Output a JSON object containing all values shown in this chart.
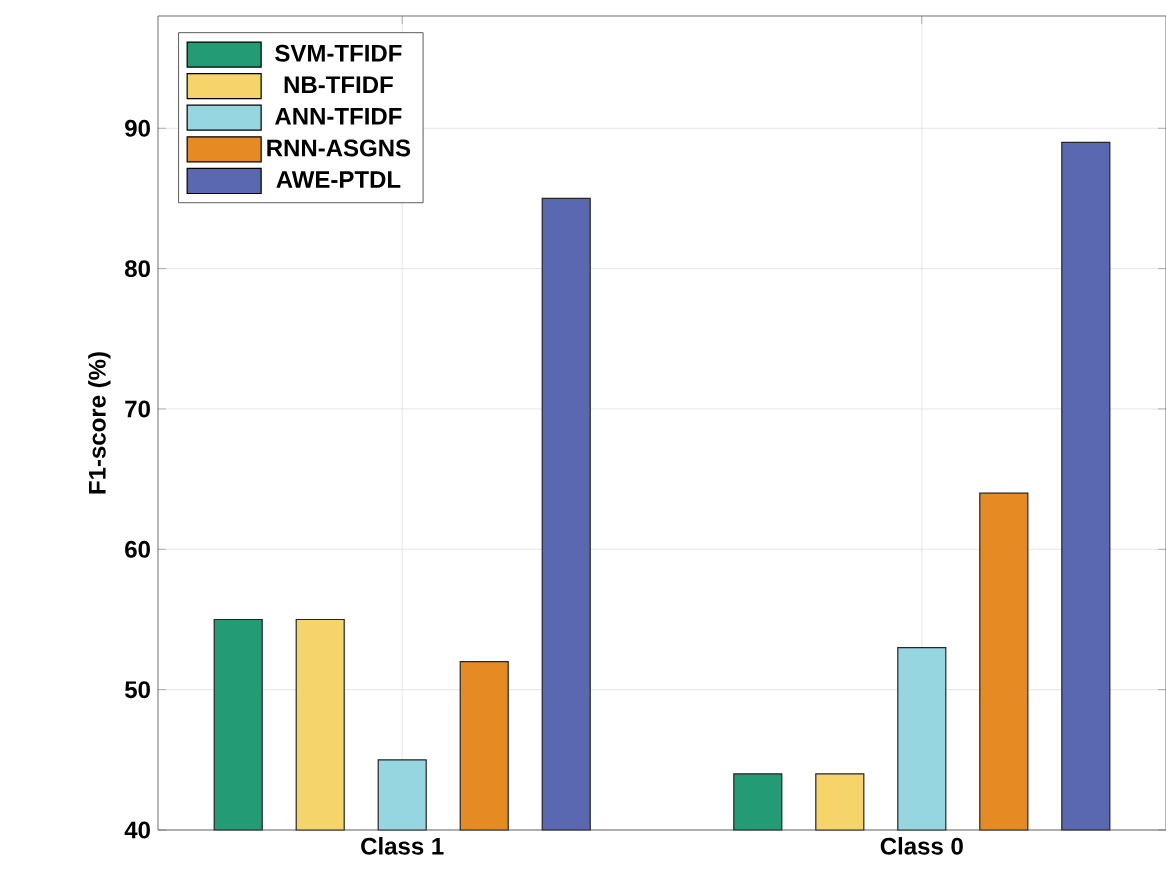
{
  "chart_data": {
    "type": "bar",
    "ylabel": "F1-score (%)",
    "categories": [
      "Class 1",
      "Class 0"
    ],
    "series": [
      {
        "name": "SVM-TFIDF",
        "color": "#239b74",
        "values": [
          55,
          44
        ]
      },
      {
        "name": "NB-TFIDF",
        "color": "#f5d46a",
        "values": [
          55,
          44
        ]
      },
      {
        "name": "ANN-TFIDF",
        "color": "#95d6e1",
        "values": [
          45,
          53
        ]
      },
      {
        "name": "RNN-ASGNS",
        "color": "#e68a24",
        "values": [
          52,
          64
        ]
      },
      {
        "name": "AWE-PTDL",
        "color": "#5a67b1",
        "values": [
          85,
          89
        ]
      }
    ],
    "ylim": [
      40,
      98
    ],
    "yticks": [
      40,
      50,
      60,
      70,
      80,
      90
    ],
    "grid": true,
    "legend": "top left"
  }
}
